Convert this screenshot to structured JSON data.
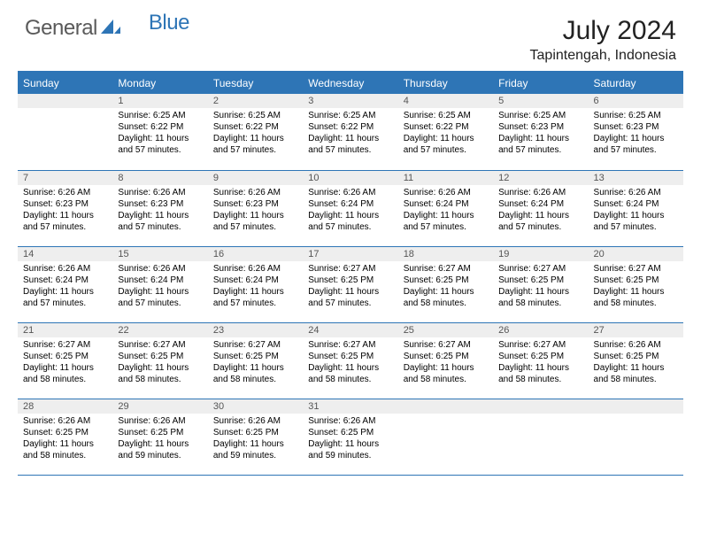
{
  "logo": {
    "text1": "General",
    "text2": "Blue"
  },
  "title": "July 2024",
  "location": "Tapintengah, Indonesia",
  "colors": {
    "header_bg": "#2e75b6",
    "header_text": "#ffffff",
    "daynum_bg": "#eeeeee",
    "daynum_text": "#555555",
    "border": "#2e75b6",
    "body_text": "#000000"
  },
  "weekdays": [
    "Sunday",
    "Monday",
    "Tuesday",
    "Wednesday",
    "Thursday",
    "Friday",
    "Saturday"
  ],
  "weeks": [
    [
      {
        "n": "",
        "sr": "",
        "ss": "",
        "dl": ""
      },
      {
        "n": "1",
        "sr": "Sunrise: 6:25 AM",
        "ss": "Sunset: 6:22 PM",
        "dl": "Daylight: 11 hours and 57 minutes."
      },
      {
        "n": "2",
        "sr": "Sunrise: 6:25 AM",
        "ss": "Sunset: 6:22 PM",
        "dl": "Daylight: 11 hours and 57 minutes."
      },
      {
        "n": "3",
        "sr": "Sunrise: 6:25 AM",
        "ss": "Sunset: 6:22 PM",
        "dl": "Daylight: 11 hours and 57 minutes."
      },
      {
        "n": "4",
        "sr": "Sunrise: 6:25 AM",
        "ss": "Sunset: 6:22 PM",
        "dl": "Daylight: 11 hours and 57 minutes."
      },
      {
        "n": "5",
        "sr": "Sunrise: 6:25 AM",
        "ss": "Sunset: 6:23 PM",
        "dl": "Daylight: 11 hours and 57 minutes."
      },
      {
        "n": "6",
        "sr": "Sunrise: 6:25 AM",
        "ss": "Sunset: 6:23 PM",
        "dl": "Daylight: 11 hours and 57 minutes."
      }
    ],
    [
      {
        "n": "7",
        "sr": "Sunrise: 6:26 AM",
        "ss": "Sunset: 6:23 PM",
        "dl": "Daylight: 11 hours and 57 minutes."
      },
      {
        "n": "8",
        "sr": "Sunrise: 6:26 AM",
        "ss": "Sunset: 6:23 PM",
        "dl": "Daylight: 11 hours and 57 minutes."
      },
      {
        "n": "9",
        "sr": "Sunrise: 6:26 AM",
        "ss": "Sunset: 6:23 PM",
        "dl": "Daylight: 11 hours and 57 minutes."
      },
      {
        "n": "10",
        "sr": "Sunrise: 6:26 AM",
        "ss": "Sunset: 6:24 PM",
        "dl": "Daylight: 11 hours and 57 minutes."
      },
      {
        "n": "11",
        "sr": "Sunrise: 6:26 AM",
        "ss": "Sunset: 6:24 PM",
        "dl": "Daylight: 11 hours and 57 minutes."
      },
      {
        "n": "12",
        "sr": "Sunrise: 6:26 AM",
        "ss": "Sunset: 6:24 PM",
        "dl": "Daylight: 11 hours and 57 minutes."
      },
      {
        "n": "13",
        "sr": "Sunrise: 6:26 AM",
        "ss": "Sunset: 6:24 PM",
        "dl": "Daylight: 11 hours and 57 minutes."
      }
    ],
    [
      {
        "n": "14",
        "sr": "Sunrise: 6:26 AM",
        "ss": "Sunset: 6:24 PM",
        "dl": "Daylight: 11 hours and 57 minutes."
      },
      {
        "n": "15",
        "sr": "Sunrise: 6:26 AM",
        "ss": "Sunset: 6:24 PM",
        "dl": "Daylight: 11 hours and 57 minutes."
      },
      {
        "n": "16",
        "sr": "Sunrise: 6:26 AM",
        "ss": "Sunset: 6:24 PM",
        "dl": "Daylight: 11 hours and 57 minutes."
      },
      {
        "n": "17",
        "sr": "Sunrise: 6:27 AM",
        "ss": "Sunset: 6:25 PM",
        "dl": "Daylight: 11 hours and 57 minutes."
      },
      {
        "n": "18",
        "sr": "Sunrise: 6:27 AM",
        "ss": "Sunset: 6:25 PM",
        "dl": "Daylight: 11 hours and 58 minutes."
      },
      {
        "n": "19",
        "sr": "Sunrise: 6:27 AM",
        "ss": "Sunset: 6:25 PM",
        "dl": "Daylight: 11 hours and 58 minutes."
      },
      {
        "n": "20",
        "sr": "Sunrise: 6:27 AM",
        "ss": "Sunset: 6:25 PM",
        "dl": "Daylight: 11 hours and 58 minutes."
      }
    ],
    [
      {
        "n": "21",
        "sr": "Sunrise: 6:27 AM",
        "ss": "Sunset: 6:25 PM",
        "dl": "Daylight: 11 hours and 58 minutes."
      },
      {
        "n": "22",
        "sr": "Sunrise: 6:27 AM",
        "ss": "Sunset: 6:25 PM",
        "dl": "Daylight: 11 hours and 58 minutes."
      },
      {
        "n": "23",
        "sr": "Sunrise: 6:27 AM",
        "ss": "Sunset: 6:25 PM",
        "dl": "Daylight: 11 hours and 58 minutes."
      },
      {
        "n": "24",
        "sr": "Sunrise: 6:27 AM",
        "ss": "Sunset: 6:25 PM",
        "dl": "Daylight: 11 hours and 58 minutes."
      },
      {
        "n": "25",
        "sr": "Sunrise: 6:27 AM",
        "ss": "Sunset: 6:25 PM",
        "dl": "Daylight: 11 hours and 58 minutes."
      },
      {
        "n": "26",
        "sr": "Sunrise: 6:27 AM",
        "ss": "Sunset: 6:25 PM",
        "dl": "Daylight: 11 hours and 58 minutes."
      },
      {
        "n": "27",
        "sr": "Sunrise: 6:26 AM",
        "ss": "Sunset: 6:25 PM",
        "dl": "Daylight: 11 hours and 58 minutes."
      }
    ],
    [
      {
        "n": "28",
        "sr": "Sunrise: 6:26 AM",
        "ss": "Sunset: 6:25 PM",
        "dl": "Daylight: 11 hours and 58 minutes."
      },
      {
        "n": "29",
        "sr": "Sunrise: 6:26 AM",
        "ss": "Sunset: 6:25 PM",
        "dl": "Daylight: 11 hours and 59 minutes."
      },
      {
        "n": "30",
        "sr": "Sunrise: 6:26 AM",
        "ss": "Sunset: 6:25 PM",
        "dl": "Daylight: 11 hours and 59 minutes."
      },
      {
        "n": "31",
        "sr": "Sunrise: 6:26 AM",
        "ss": "Sunset: 6:25 PM",
        "dl": "Daylight: 11 hours and 59 minutes."
      },
      {
        "n": "",
        "sr": "",
        "ss": "",
        "dl": ""
      },
      {
        "n": "",
        "sr": "",
        "ss": "",
        "dl": ""
      },
      {
        "n": "",
        "sr": "",
        "ss": "",
        "dl": ""
      }
    ]
  ]
}
